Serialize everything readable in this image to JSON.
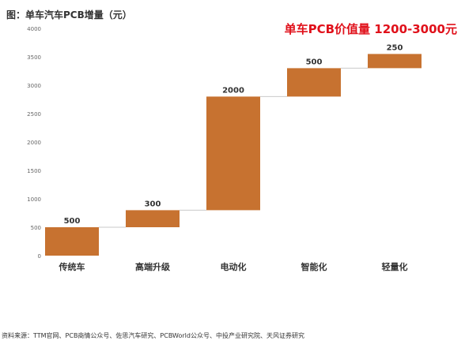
{
  "figure_title": "图：单车汽车PCB增量（元）",
  "highlight_text": "单车PCB价值量 1200-3000元",
  "source_text": "资料来源：TTM官网、PCB商情公众号、佐思汽车研究、PCBWorld公众号、中投产业研究院、天风证券研究",
  "colors": {
    "bar": "#c77230",
    "connector": "#c9c9c9",
    "axis_text": "#666666",
    "label_text": "#333333"
  },
  "chart_data": {
    "type": "waterfall",
    "title": "",
    "xlabel": "",
    "ylabel": "",
    "categories": [
      "传统车",
      "高端升级",
      "电动化",
      "智能化",
      "轻量化"
    ],
    "values": [
      500,
      300,
      2000,
      500,
      250
    ],
    "data_labels": [
      "500",
      "300",
      "2000",
      "500",
      "250"
    ],
    "ylim": [
      0,
      4000
    ],
    "yticks": [
      0,
      500,
      1000,
      1500,
      2000,
      2500,
      3000,
      3500,
      4000
    ],
    "grid": false,
    "legend": "none"
  }
}
